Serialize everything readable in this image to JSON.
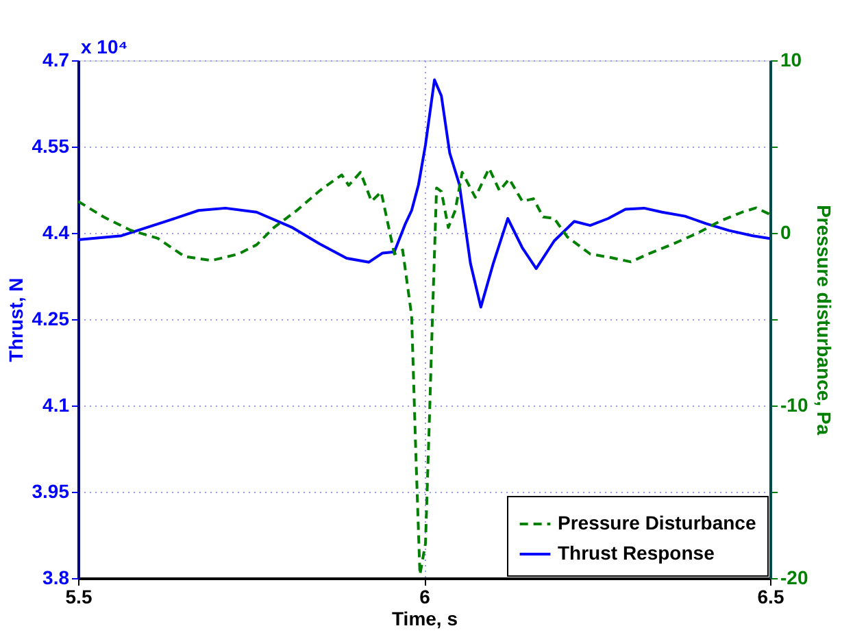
{
  "chart_data": {
    "type": "line",
    "xlabel": "Time, s",
    "ylabel": "Thrust, N",
    "y2label": "Pressure disturbance, Pa",
    "annotations": [
      "x 10⁴"
    ],
    "xlim": [
      5.5,
      6.5
    ],
    "xticks": [
      5.5,
      6,
      6.5
    ],
    "ylim": [
      3.8,
      4.7
    ],
    "yticks": [
      3.8,
      3.95,
      4.1,
      4.25,
      4.4,
      4.55,
      4.7
    ],
    "y2lim": [
      -20,
      10
    ],
    "y2ticks": [
      -20,
      {
        "value": -15,
        "label": null
      },
      -10,
      {
        "value": -5,
        "label": null
      },
      0,
      {
        "value": 5,
        "label": null
      },
      10
    ],
    "grid": true,
    "legend": "bottom right",
    "series": [
      {
        "name": "Pressure Disturbance",
        "color": "#008000",
        "axis": "y2",
        "line_style": "dashed",
        "x": [
          5.5,
          5.537,
          5.576,
          5.615,
          5.654,
          5.693,
          5.732,
          5.758,
          5.783,
          5.816,
          5.849,
          5.881,
          5.891,
          5.908,
          5.924,
          5.938,
          5.957,
          5.969,
          5.982,
          5.988,
          5.994,
          6.002,
          6.008,
          6.012,
          6.018,
          6.025,
          6.035,
          6.045,
          6.055,
          6.074,
          6.094,
          6.109,
          6.123,
          6.142,
          6.158,
          6.172,
          6.188,
          6.207,
          6.24,
          6.272,
          6.299,
          6.324,
          6.357,
          6.396,
          6.428,
          6.461,
          6.48,
          6.5
        ],
        "values": [
          1.83,
          0.92,
          0.15,
          -0.31,
          -1.37,
          -1.6,
          -1.22,
          -0.69,
          0.31,
          1.3,
          2.44,
          3.36,
          2.75,
          3.51,
          1.83,
          2.37,
          -1.22,
          -0.99,
          -4.81,
          -12.7,
          -19.8,
          -18,
          -10.4,
          -5,
          2.6,
          2.4,
          0.31,
          1.3,
          3.51,
          2.06,
          3.74,
          2.44,
          3.13,
          1.83,
          1.98,
          0.92,
          0.84,
          -0.23,
          -1.22,
          -1.45,
          -1.68,
          -1.22,
          -0.69,
          0.0,
          0.69,
          1.22,
          1.45,
          1.07
        ]
      },
      {
        "name": "Thrust Response",
        "color": "#0000ff",
        "line_style": "solid",
        "x": [
          5.5,
          5.5625,
          5.627,
          5.674,
          5.713,
          5.758,
          5.81,
          5.849,
          5.888,
          5.92,
          5.94,
          5.957,
          5.973,
          5.982,
          5.992,
          6.002,
          6.015,
          6.025,
          6.037,
          6.051,
          6.067,
          6.082,
          6.1,
          6.121,
          6.142,
          6.162,
          6.188,
          6.217,
          6.24,
          6.266,
          6.291,
          6.318,
          6.344,
          6.377,
          6.408,
          6.441,
          6.475,
          6.5
        ],
        "values": [
          4.388,
          4.395,
          4.42,
          4.439,
          4.443,
          4.436,
          4.409,
          4.381,
          4.356,
          4.349,
          4.365,
          4.367,
          4.416,
          4.439,
          4.484,
          4.553,
          4.666,
          4.638,
          4.539,
          4.484,
          4.347,
          4.271,
          4.347,
          4.425,
          4.374,
          4.338,
          4.386,
          4.42,
          4.413,
          4.425,
          4.441,
          4.443,
          4.436,
          4.429,
          4.416,
          4.404,
          4.395,
          4.39
        ]
      }
    ]
  }
}
